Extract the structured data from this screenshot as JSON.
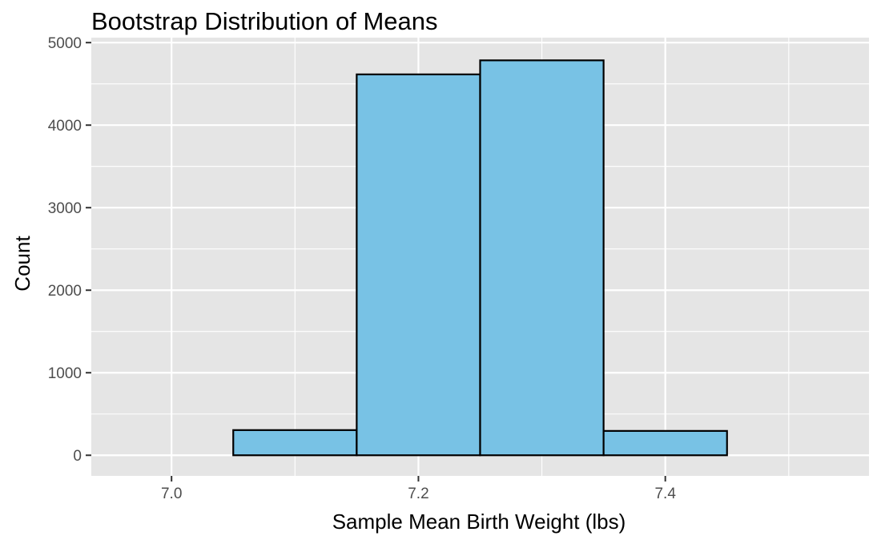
{
  "chart_data": {
    "type": "bar",
    "title": "Bootstrap Distribution of Means",
    "xlabel": "Sample Mean Birth Weight (lbs)",
    "ylabel": "Count",
    "bins": [
      {
        "x0": 6.95,
        "x1": 7.05,
        "count": 0
      },
      {
        "x0": 7.05,
        "x1": 7.15,
        "count": 305
      },
      {
        "x0": 7.15,
        "x1": 7.25,
        "count": 4615
      },
      {
        "x0": 7.25,
        "x1": 7.35,
        "count": 4785
      },
      {
        "x0": 7.35,
        "x1": 7.45,
        "count": 295
      },
      {
        "x0": 7.45,
        "x1": 7.55,
        "count": 0
      }
    ],
    "xlim": [
      6.935,
      7.565
    ],
    "ylim": [
      -250,
      5060
    ],
    "x_ticks": [
      {
        "value": 7.0,
        "label": "7.0"
      },
      {
        "value": 7.2,
        "label": "7.2"
      },
      {
        "value": 7.4,
        "label": "7.4"
      }
    ],
    "x_minor_gridlines": [
      7.1,
      7.3,
      7.5
    ],
    "y_ticks": [
      {
        "value": 0,
        "label": "0"
      },
      {
        "value": 1000,
        "label": "1000"
      },
      {
        "value": 2000,
        "label": "2000"
      },
      {
        "value": 3000,
        "label": "3000"
      },
      {
        "value": 4000,
        "label": "4000"
      },
      {
        "value": 5000,
        "label": "5000"
      }
    ],
    "y_minor_gridlines": [
      500,
      1500,
      2500,
      3500,
      4500
    ],
    "grid": true,
    "colors": {
      "fill": "#78c2e5",
      "outline": "#000000",
      "panel": "#e5e5e5",
      "gridline": "#ffffff",
      "tick_text": "#4d4d4d"
    }
  }
}
